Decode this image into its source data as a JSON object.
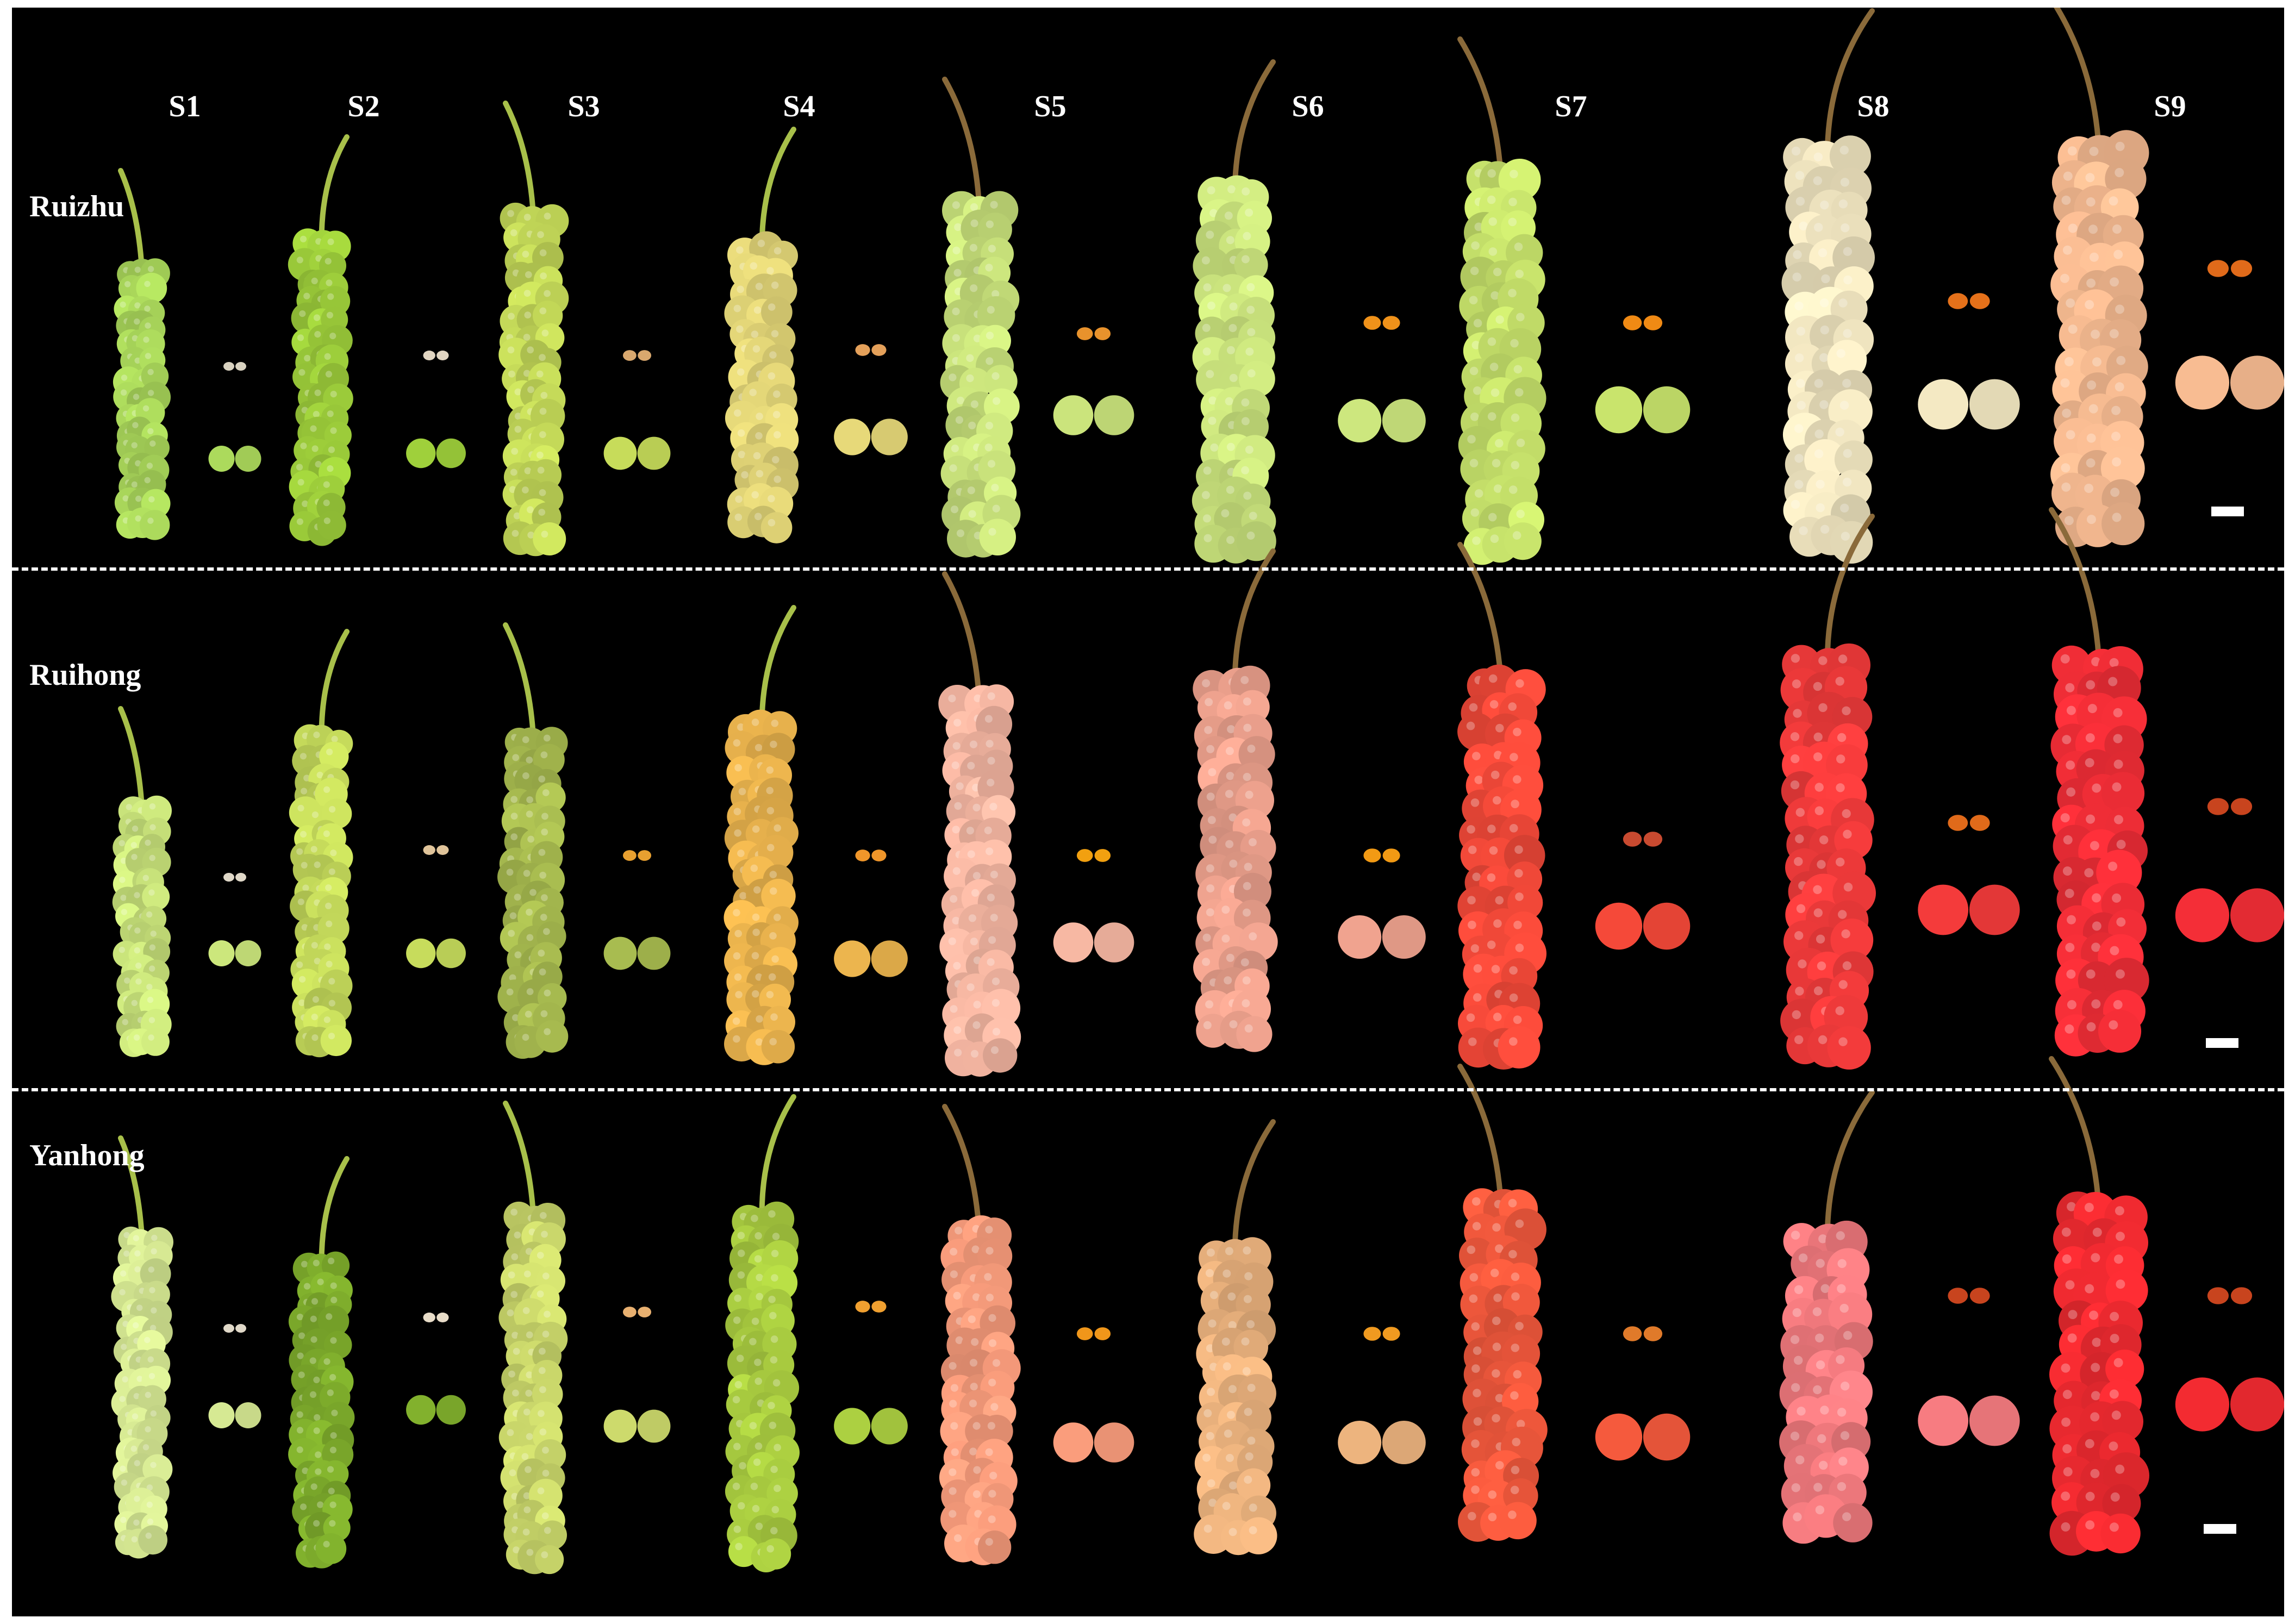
{
  "stages": [
    "S1",
    "S2",
    "S3",
    "S4",
    "S5",
    "S6",
    "S7",
    "S8",
    "S9"
  ],
  "cultivars": [
    {
      "name": "Ruizhu",
      "colors": [
        "#a9d65a",
        "#9ccc3a",
        "#c3d858",
        "#e2d577",
        "#c7e07a",
        "#c9e27c",
        "#c5e06a",
        "#efe4bf",
        "#f3b88f"
      ],
      "seed_colors": [
        "#d9d2c0",
        "#e2d6c2",
        "#d9a86e",
        "#e4a05a",
        "#e8922c",
        "#f0921a",
        "#f08a14",
        "#e5711a",
        "#e06a1a"
      ]
    },
    {
      "name": "Ruihong",
      "colors": [
        "#c8e27a",
        "#c3d85a",
        "#a5b84e",
        "#e7b14c",
        "#f2b4a0",
        "#eba08c",
        "#f04838",
        "#ef3a3a",
        "#ef2d36"
      ],
      "seed_colors": [
        "#e0d8c8",
        "#e0c49a",
        "#e8a030",
        "#f0962a",
        "#f2a010",
        "#f29a14",
        "#c84a30",
        "#e06a1a",
        "#c8441e"
      ]
    },
    {
      "name": "Yanhong",
      "colors": [
        "#d2e490",
        "#7fae2c",
        "#c9d66a",
        "#a9cc40",
        "#f59a7a",
        "#e8b07c",
        "#f0583c",
        "#f27a7e",
        "#ee2a30"
      ],
      "seed_colors": [
        "#e0d8c8",
        "#e8dcc8",
        "#e8b070",
        "#f0a030",
        "#f0961a",
        "#f09a20",
        "#e07a2a",
        "#c8441e",
        "#c8441e"
      ]
    }
  ]
}
